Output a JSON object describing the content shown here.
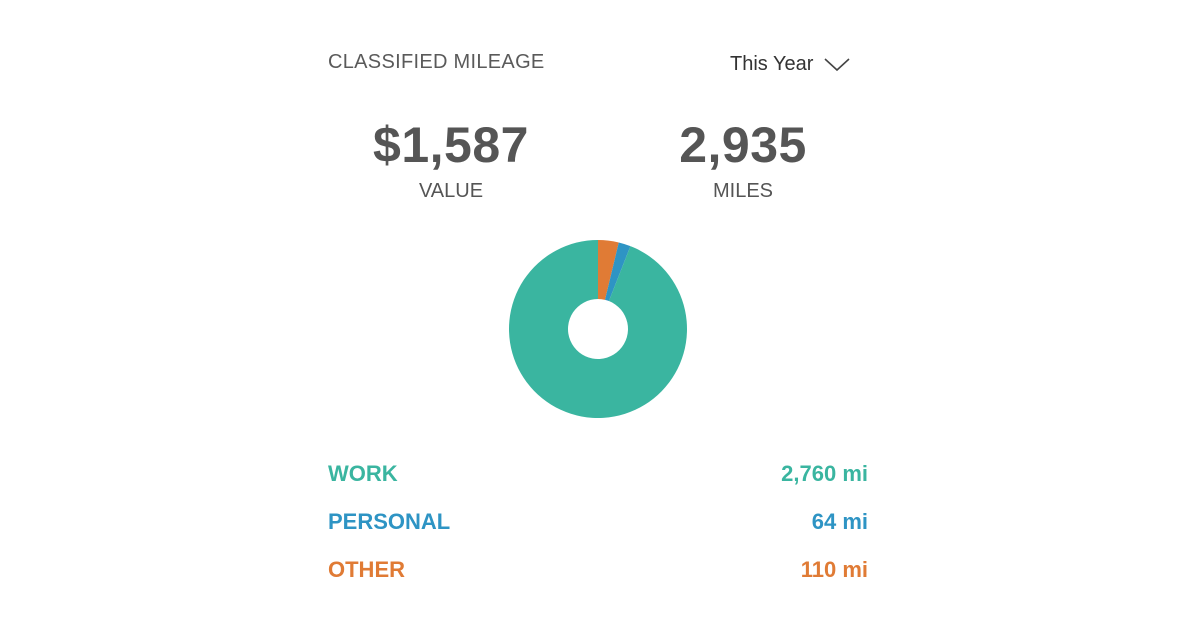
{
  "header": {
    "title": "CLASSIFIED MILEAGE",
    "period": {
      "selected": "This Year",
      "icon": "chevron-down-icon"
    }
  },
  "stats": {
    "value": {
      "amount": "$1,587",
      "label": "VALUE"
    },
    "miles": {
      "amount": "2,935",
      "label": "MILES"
    }
  },
  "colors": {
    "work": "#3ab5a0",
    "personal": "#2e94c4",
    "other": "#e07b35",
    "text": "#555555"
  },
  "chart_data": {
    "type": "pie",
    "donut": true,
    "categories": [
      "WORK",
      "PERSONAL",
      "OTHER"
    ],
    "values": [
      2760,
      64,
      110
    ],
    "unit": "mi",
    "colors": [
      "#3ab5a0",
      "#2e94c4",
      "#e07b35"
    ]
  },
  "legend": [
    {
      "key": "work",
      "label": "WORK",
      "value": "2,760 mi",
      "color": "#3ab5a0"
    },
    {
      "key": "personal",
      "label": "PERSONAL",
      "value": "64 mi",
      "color": "#2e94c4"
    },
    {
      "key": "other",
      "label": "OTHER",
      "value": "110 mi",
      "color": "#e07b35"
    }
  ]
}
